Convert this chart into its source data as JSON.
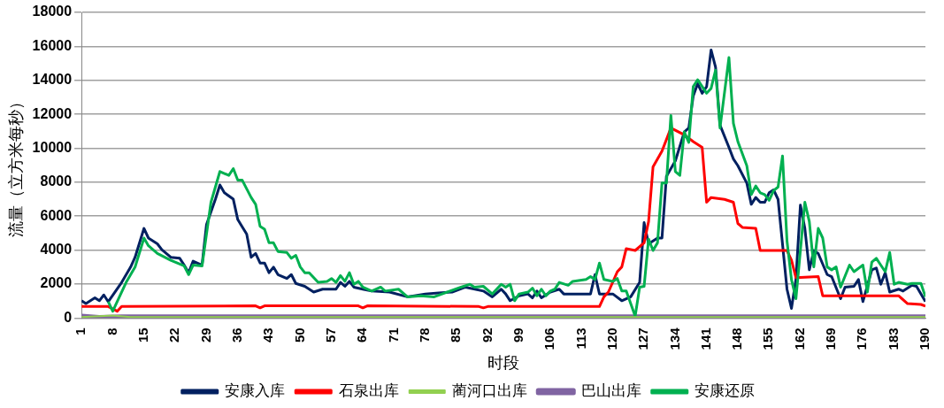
{
  "chart_data": {
    "type": "line",
    "xlabel": "时段",
    "ylabel": "流量（立方米每秒）",
    "xlim": [
      1,
      190
    ],
    "xticks": [
      1,
      8,
      15,
      22,
      29,
      36,
      43,
      50,
      57,
      64,
      71,
      78,
      85,
      92,
      99,
      106,
      113,
      120,
      127,
      134,
      141,
      148,
      155,
      162,
      169,
      176,
      183,
      190
    ],
    "ylim": [
      0,
      18000
    ],
    "yticks": [
      0,
      2000,
      4000,
      6000,
      8000,
      10000,
      12000,
      14000,
      16000,
      18000
    ],
    "grid": "y",
    "legend": "bottom",
    "marker": "none",
    "line_style": "solid",
    "series": [
      {
        "name": "安康入库",
        "color": "#002060",
        "x": [
          1,
          2,
          4,
          5,
          6,
          7,
          10,
          12,
          13,
          15,
          16,
          18,
          19,
          21,
          23,
          24,
          25,
          26,
          28,
          29,
          31,
          32,
          33,
          35,
          36,
          38,
          39,
          40,
          41,
          42,
          43,
          44,
          45,
          47,
          48,
          49,
          51,
          53,
          55,
          58,
          59,
          60,
          61,
          62,
          64,
          66,
          70,
          74,
          78,
          81,
          84,
          87,
          91,
          93,
          95,
          96,
          97,
          99,
          101,
          102,
          103,
          104,
          106,
          108,
          109,
          115,
          116,
          117,
          120,
          122,
          124,
          126,
          127,
          128,
          129,
          130,
          131,
          132,
          134,
          136,
          137,
          138,
          139,
          140,
          141,
          142,
          143,
          144,
          146,
          147,
          148,
          150,
          151,
          152,
          153,
          154,
          155,
          156,
          157,
          159,
          160,
          161,
          162,
          163,
          164,
          165,
          166,
          168,
          169,
          171,
          172,
          174,
          175,
          176,
          178,
          179,
          180,
          181,
          182,
          184,
          185,
          187,
          188,
          190
        ],
        "values": [
          1020,
          850,
          1190,
          1020,
          1360,
          960,
          2100,
          3000,
          3580,
          5280,
          4710,
          4370,
          4030,
          3580,
          3520,
          3120,
          2670,
          3350,
          3120,
          5500,
          7000,
          7840,
          7380,
          7000,
          5800,
          4940,
          3580,
          3800,
          3240,
          3240,
          2670,
          3000,
          2560,
          2330,
          2560,
          2040,
          1870,
          1530,
          1700,
          1700,
          2100,
          1870,
          2160,
          1820,
          1700,
          1590,
          1530,
          1250,
          1420,
          1480,
          1530,
          1820,
          1590,
          1250,
          1700,
          1420,
          1020,
          1310,
          1420,
          1190,
          1590,
          1190,
          1530,
          1700,
          1420,
          1420,
          2560,
          1420,
          1420,
          1020,
          1250,
          2100,
          5620,
          4370,
          4540,
          4710,
          4710,
          8350,
          9260,
          10960,
          11190,
          13070,
          13800,
          13240,
          13630,
          15790,
          14770,
          11360,
          10050,
          9370,
          8970,
          7950,
          6700,
          7100,
          6820,
          6820,
          7380,
          7550,
          6990,
          1700,
          570,
          2270,
          6650,
          5280,
          2840,
          3980,
          3800,
          2560,
          2440,
          1140,
          1820,
          1870,
          2270,
          970,
          2840,
          2950,
          1990,
          2670,
          1530,
          1700,
          1590,
          1930,
          1870,
          970
        ]
      },
      {
        "name": "石泉出库",
        "color": "#ff0000",
        "x": [
          1,
          7,
          9,
          10,
          40,
          41,
          42,
          63,
          64,
          65,
          90,
          91,
          92,
          117,
          118,
          119,
          121,
          122,
          123,
          125,
          127,
          128,
          129,
          131,
          133,
          136,
          138,
          140,
          141,
          142,
          145,
          147,
          148,
          149,
          152,
          153,
          159,
          160,
          161,
          166,
          167,
          184,
          186,
          189,
          190
        ],
        "values": [
          680,
          680,
          400,
          680,
          720,
          600,
          720,
          720,
          600,
          720,
          680,
          600,
          680,
          680,
          1250,
          1530,
          2730,
          3010,
          4090,
          3980,
          4430,
          5680,
          8910,
          9830,
          11190,
          10790,
          10390,
          10050,
          6820,
          7100,
          6990,
          6820,
          5570,
          5340,
          5280,
          3980,
          3980,
          3410,
          2380,
          2440,
          1310,
          1310,
          850,
          800,
          700
        ]
      },
      {
        "name": "蔺河口出库",
        "color": "#92d050",
        "x": [
          1,
          8,
          12,
          190
        ],
        "values": [
          60,
          150,
          60,
          60
        ]
      },
      {
        "name": "巴山出库",
        "color": "#8064a2",
        "x": [
          1,
          5,
          10,
          190
        ],
        "values": [
          120,
          50,
          80,
          80
        ]
      },
      {
        "name": "安康还原",
        "color": "#00b050",
        "x": [
          7,
          8,
          11,
          13,
          15,
          16,
          18,
          21,
          24,
          25,
          26,
          28,
          30,
          32,
          34,
          35,
          36,
          37,
          39,
          40,
          41,
          42,
          43,
          44,
          45,
          47,
          48,
          49,
          50,
          51,
          52,
          54,
          56,
          57,
          58,
          59,
          60,
          61,
          62,
          63,
          64,
          66,
          68,
          69,
          72,
          74,
          77,
          80,
          86,
          88,
          89,
          91,
          93,
          95,
          96,
          97,
          98,
          99,
          101,
          102,
          103,
          104,
          105,
          106,
          107,
          108,
          110,
          111,
          114,
          115,
          116,
          117,
          118,
          120,
          121,
          122,
          123,
          125,
          126,
          127,
          128,
          129,
          130,
          131,
          132,
          133,
          134,
          135,
          136,
          137,
          138,
          139,
          141,
          142,
          143,
          144,
          146,
          147,
          148,
          150,
          151,
          152,
          153,
          154,
          155,
          156,
          157,
          158,
          159,
          160,
          161,
          163,
          164,
          165,
          166,
          167,
          168,
          169,
          170,
          171,
          173,
          174,
          176,
          177,
          178,
          179,
          180,
          181,
          182,
          183,
          184,
          186,
          187,
          189,
          190
        ],
        "values": [
          970,
          400,
          2100,
          3000,
          4710,
          4260,
          3800,
          3400,
          3070,
          2560,
          3120,
          3070,
          6820,
          8630,
          8400,
          8800,
          8120,
          8120,
          7100,
          6700,
          5400,
          5230,
          4430,
          4430,
          3920,
          3860,
          3520,
          3690,
          3010,
          2670,
          2670,
          2100,
          2160,
          2330,
          2100,
          2500,
          2160,
          2670,
          1990,
          2160,
          1820,
          1590,
          1820,
          1590,
          1700,
          1250,
          1310,
          1250,
          1820,
          1990,
          1820,
          1870,
          1420,
          1990,
          1820,
          1990,
          1020,
          1420,
          1530,
          1760,
          1310,
          1700,
          1310,
          1590,
          1700,
          2100,
          1930,
          2160,
          2270,
          2440,
          2270,
          3240,
          2270,
          2160,
          2330,
          1590,
          1590,
          110,
          1820,
          1870,
          4650,
          3980,
          4430,
          7950,
          7950,
          11930,
          8630,
          8400,
          10960,
          10340,
          13630,
          14030,
          13240,
          13520,
          14600,
          11190,
          15340,
          11470,
          10390,
          8970,
          7270,
          7780,
          7380,
          7270,
          6930,
          7500,
          7720,
          9540,
          4540,
          2270,
          1140,
          6820,
          5680,
          3010,
          5280,
          4710,
          3010,
          2840,
          3010,
          1820,
          3120,
          2730,
          3120,
          1530,
          3300,
          3520,
          3120,
          2730,
          3860,
          1990,
          2100,
          1990,
          2040,
          2040,
          1250
        ]
      }
    ]
  }
}
